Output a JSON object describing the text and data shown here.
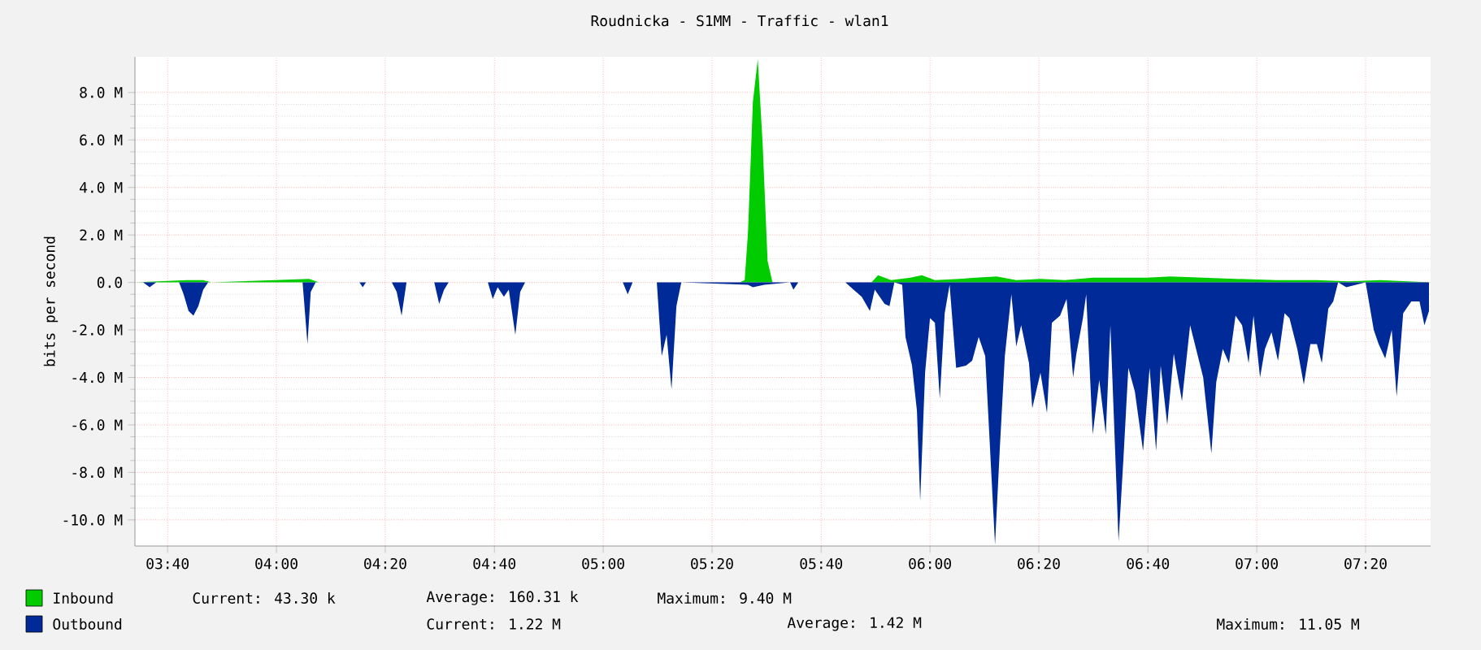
{
  "chart_data": {
    "type": "area",
    "title": "Roudnicka - S1MM - Traffic - wlan1",
    "ylabel": "bits per second",
    "xlim": [
      3.567,
      7.532
    ],
    "ylim": [
      -11.1,
      9.5
    ],
    "xticks": [
      {
        "value": 3.667,
        "label": "03:40"
      },
      {
        "value": 4,
        "label": "04:00"
      },
      {
        "value": 4.333,
        "label": "04:20"
      },
      {
        "value": 4.667,
        "label": "04:40"
      },
      {
        "value": 5,
        "label": "05:00"
      },
      {
        "value": 5.333,
        "label": "05:20"
      },
      {
        "value": 5.667,
        "label": "05:40"
      },
      {
        "value": 6,
        "label": "06:00"
      },
      {
        "value": 6.333,
        "label": "06:20"
      },
      {
        "value": 6.667,
        "label": "06:40"
      },
      {
        "value": 7,
        "label": "07:00"
      },
      {
        "value": 7.333,
        "label": "07:20"
      }
    ],
    "yticks": [
      {
        "value": -10,
        "label": "-10.0 M"
      },
      {
        "value": -8,
        "label": "-8.0 M"
      },
      {
        "value": -6,
        "label": "-6.0 M"
      },
      {
        "value": -4,
        "label": "-4.0 M"
      },
      {
        "value": -2,
        "label": "-2.0 M"
      },
      {
        "value": 0,
        "label": "0.0"
      },
      {
        "value": 2,
        "label": "2.0 M"
      },
      {
        "value": 4,
        "label": "4.0 M"
      },
      {
        "value": 6,
        "label": "6.0 M"
      },
      {
        "value": 8,
        "label": "8.0 M"
      }
    ],
    "grid": true,
    "legend": "bottom",
    "series": [
      {
        "name": "Inbound",
        "color": "#00cc00",
        "x": [
          3.567,
          3.726,
          3.776,
          3.801,
          4.1,
          4.13,
          5.418,
          5.433,
          5.443,
          5.458,
          5.473,
          5.488,
          5.503,
          5.518,
          5.821,
          5.841,
          5.881,
          5.94,
          5.975,
          6.015,
          6.09,
          6.139,
          6.204,
          6.264,
          6.338,
          6.413,
          6.498,
          6.587,
          6.662,
          6.736,
          6.836,
          6.935,
          7.06,
          7.184,
          7.279,
          7.378,
          7.532
        ],
        "values": [
          0,
          0.1,
          0.1,
          0,
          0.15,
          0,
          0,
          0.1,
          2.1,
          7.6,
          9.4,
          5.8,
          0.9,
          0,
          0,
          0.3,
          0.1,
          0.2,
          0.3,
          0.1,
          0.15,
          0.2,
          0.25,
          0.1,
          0.15,
          0.1,
          0.2,
          0.2,
          0.2,
          0.25,
          0.2,
          0.15,
          0.1,
          0.1,
          0.05,
          0.1,
          0
        ]
      },
      {
        "name": "Outbound",
        "color": "#002a97",
        "x": [
          3.567,
          3.592,
          3.612,
          3.632,
          3.702,
          3.716,
          3.731,
          3.746,
          3.761,
          3.776,
          3.791,
          4.08,
          4.095,
          4.105,
          4.12,
          4.254,
          4.264,
          4.274,
          4.353,
          4.368,
          4.383,
          4.398,
          4.483,
          4.498,
          4.513,
          4.527,
          4.647,
          4.662,
          4.677,
          4.696,
          4.711,
          4.731,
          4.746,
          4.761,
          5.06,
          5.075,
          5.09,
          5.164,
          5.179,
          5.194,
          5.209,
          5.224,
          5.239,
          5.443,
          5.458,
          5.493,
          5.572,
          5.582,
          5.597,
          5.741,
          5.766,
          5.791,
          5.816,
          5.831,
          5.861,
          5.876,
          5.891,
          5.915,
          5.925,
          5.945,
          5.96,
          5.97,
          5.985,
          6.0,
          6.015,
          6.03,
          6.045,
          6.06,
          6.08,
          6.11,
          6.129,
          6.149,
          6.169,
          6.199,
          6.214,
          6.229,
          6.249,
          6.264,
          6.279,
          6.303,
          6.313,
          6.338,
          6.358,
          6.373,
          6.398,
          6.418,
          6.438,
          6.448,
          6.468,
          6.478,
          6.498,
          6.518,
          6.538,
          6.552,
          6.577,
          6.592,
          6.607,
          6.627,
          6.652,
          6.672,
          6.692,
          6.706,
          6.726,
          6.746,
          6.771,
          6.796,
          6.836,
          6.861,
          6.876,
          6.896,
          6.915,
          6.935,
          6.955,
          6.975,
          6.99,
          7.01,
          7.025,
          7.045,
          7.065,
          7.085,
          7.1,
          7.124,
          7.144,
          7.164,
          7.184,
          7.199,
          7.219,
          7.234,
          7.249,
          7.274,
          7.333,
          7.358,
          7.373,
          7.393,
          7.413,
          7.428,
          7.448,
          7.473,
          7.498,
          7.513,
          7.527
        ],
        "values": [
          0,
          0,
          -0.2,
          0,
          0,
          -0.5,
          -1.2,
          -1.4,
          -1.0,
          -0.3,
          0,
          0,
          -2.6,
          -0.4,
          0,
          0,
          -0.2,
          0,
          0,
          -0.4,
          -1.4,
          0,
          0,
          -0.9,
          -0.3,
          0,
          0,
          -0.7,
          -0.2,
          -0.6,
          -0.3,
          -2.2,
          -0.4,
          0,
          0,
          -0.5,
          0,
          0,
          -3.1,
          -2.2,
          -4.5,
          -1.0,
          0,
          -0.1,
          -0.2,
          -0.1,
          0,
          -0.3,
          0,
          0,
          -0.3,
          -0.6,
          -1.2,
          -0.3,
          -0.9,
          -1.0,
          0,
          -0.1,
          -2.3,
          -3.5,
          -5.4,
          -9.2,
          -3.8,
          -1.5,
          -1.7,
          -4.9,
          -1.3,
          -0.1,
          -3.6,
          -3.5,
          -3.3,
          -2.3,
          -3.1,
          -11.05,
          -6.9,
          -3.1,
          -0.5,
          -2.7,
          -1.8,
          -3.4,
          -5.3,
          -3.8,
          -5.5,
          -1.7,
          -1.4,
          -0.7,
          -4.0,
          -3.0,
          -1.5,
          -0.5,
          -6.4,
          -4.1,
          -6.4,
          -1.8,
          -10.9,
          -7.4,
          -3.6,
          -4.6,
          -7.1,
          -3.6,
          -7.1,
          -3.5,
          -6.0,
          -3.0,
          -5.0,
          -1.8,
          -4.0,
          -7.2,
          -4.2,
          -2.8,
          -3.4,
          -1.4,
          -1.8,
          -3.4,
          -1.4,
          -4.0,
          -2.8,
          -2.1,
          -3.3,
          -1.3,
          -1.5,
          -2.8,
          -4.3,
          -2.6,
          -2.6,
          -3.4,
          -1.1,
          -0.8,
          0,
          -0.2,
          0,
          -2.0,
          -2.6,
          -3.2,
          -2.0,
          -4.8,
          -1.3,
          -0.8,
          -0.8,
          -1.8,
          -1.2
        ]
      }
    ],
    "annotations": [
      "Current: 43.30 k",
      "Average: 160.31 k",
      "Maximum: 9.40 M",
      "Current: 1.22 M",
      "Average: 1.42 M",
      "Maximum: 11.05 M"
    ]
  }
}
